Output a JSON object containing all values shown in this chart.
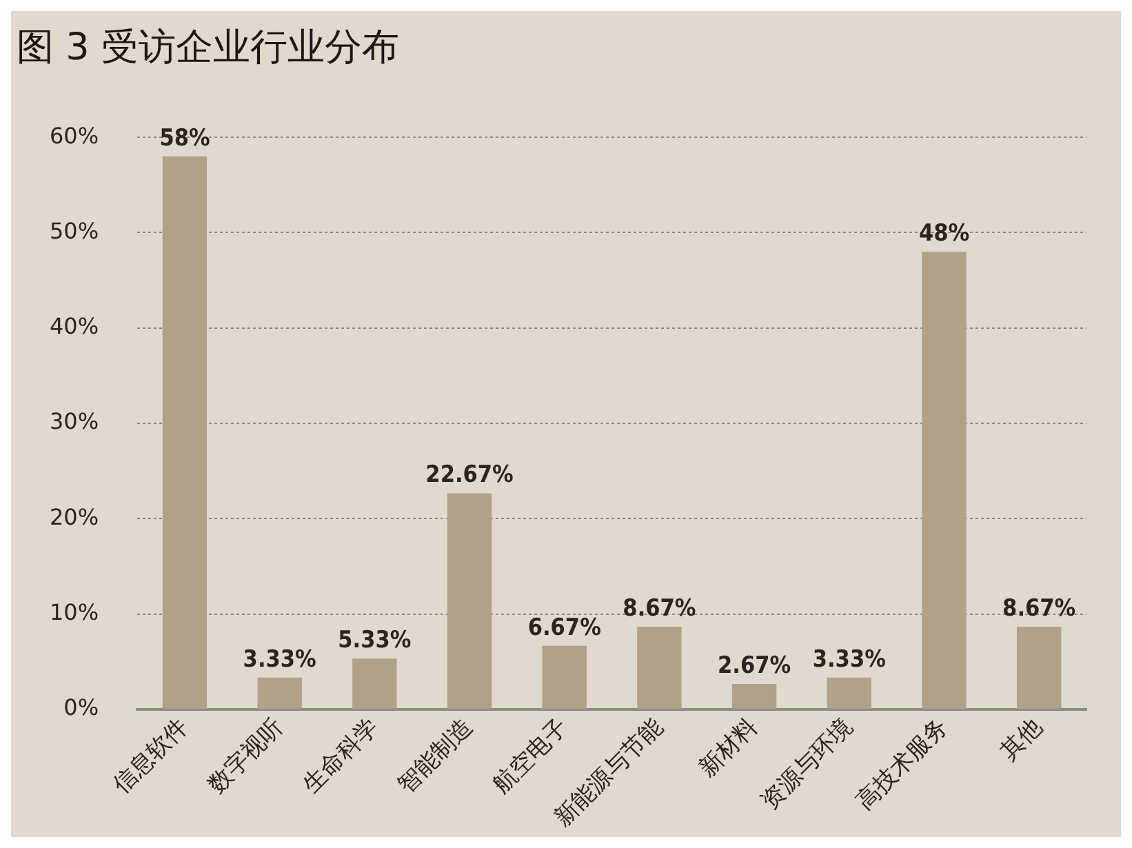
{
  "chart_data": {
    "type": "bar",
    "title": "图 3  受访企业行业分布",
    "categories": [
      "信息软件",
      "数字视听",
      "生命科学",
      "智能制造",
      "航空电子",
      "新能源与节能",
      "新材料",
      "资源与环境",
      "高技术服务",
      "其他"
    ],
    "values": [
      58,
      3.33,
      5.33,
      22.67,
      6.67,
      8.67,
      2.67,
      3.33,
      48,
      8.67
    ],
    "value_labels": [
      "58%",
      "3.33%",
      "5.33%",
      "22.67%",
      "6.67%",
      "8.67%",
      "2.67%",
      "3.33%",
      "48%",
      "8.67%"
    ],
    "color": "#b0a288",
    "ylim": [
      0,
      60
    ],
    "yticks": [
      {
        "value": 0,
        "label": "0%"
      },
      {
        "value": 10,
        "label": "10%"
      },
      {
        "value": 20,
        "label": "20%"
      },
      {
        "value": 30,
        "label": "30%"
      },
      {
        "value": 40,
        "label": "40%"
      },
      {
        "value": 50,
        "label": "50%"
      },
      {
        "value": 60,
        "label": "60%"
      }
    ],
    "grid": "y",
    "legend": false
  }
}
